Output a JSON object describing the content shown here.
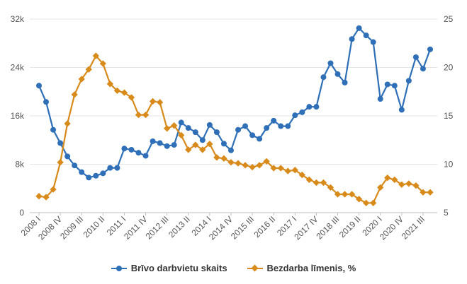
{
  "chart_data": {
    "type": "line",
    "title": "",
    "xlabel": "",
    "ylabel_left": "",
    "ylabel_right": "",
    "ylim_left": [
      0,
      32000
    ],
    "ylim_right": [
      5,
      25
    ],
    "yticks_left": [
      {
        "value": 0,
        "label": "0"
      },
      {
        "value": 8000,
        "label": "8k"
      },
      {
        "value": 16000,
        "label": "16k"
      },
      {
        "value": 24000,
        "label": "24k"
      },
      {
        "value": 32000,
        "label": "32k"
      }
    ],
    "yticks_right": [
      {
        "value": 5,
        "label": "5"
      },
      {
        "value": 10,
        "label": "10"
      },
      {
        "value": 15,
        "label": "15"
      },
      {
        "value": 20,
        "label": "20"
      },
      {
        "value": 25,
        "label": "25"
      }
    ],
    "xtick_labels": [
      "2008 I",
      "2008 IV",
      "2009 III",
      "2010 II",
      "2011 I",
      "2011 IV",
      "2012 III",
      "2013 II",
      "2014 I",
      "2014 IV",
      "2015 III",
      "2016 II",
      "2017 I",
      "2017 IV",
      "2018 III",
      "2019 II",
      "2020 I",
      "2020 IV",
      "2021 III"
    ],
    "colors": {
      "series1": "#2e6fb7",
      "series2": "#d88a1a"
    },
    "series": [
      {
        "name": "Brīvo darbvietu skaits",
        "axis": "left",
        "marker": "circle",
        "values": [
          21000,
          18300,
          13700,
          11500,
          9300,
          7800,
          6700,
          5800,
          6100,
          6500,
          7400,
          7400,
          10600,
          10400,
          9900,
          9400,
          11800,
          11500,
          11000,
          11200,
          14900,
          14000,
          13300,
          12000,
          14500,
          13300,
          11400,
          10300,
          13700,
          14300,
          12800,
          12200,
          14000,
          15200,
          14300,
          14300,
          16100,
          16600,
          17500,
          17500,
          22400,
          24700,
          22900,
          21500,
          28700,
          30500,
          29300,
          28200,
          18800,
          21200,
          21000,
          17000,
          21800,
          25700,
          23800,
          27000
        ]
      },
      {
        "name": "Bezdarba līmenis, %",
        "axis": "right",
        "marker": "diamond",
        "values": [
          6.7,
          6.6,
          7.4,
          10.2,
          14.2,
          17.2,
          18.8,
          19.8,
          21.2,
          20.4,
          18.3,
          17.6,
          17.4,
          16.9,
          15.1,
          15.1,
          16.5,
          16.4,
          13.7,
          14.0,
          13.0,
          11.5,
          12.0,
          11.5,
          12.1,
          10.7,
          10.6,
          10.2,
          10.1,
          9.9,
          9.7,
          9.9,
          10.3,
          9.6,
          9.6,
          9.3,
          9.4,
          8.9,
          8.4,
          8.1,
          8.1,
          7.6,
          6.9,
          6.9,
          6.9,
          6.4,
          6.0,
          6.0,
          7.6,
          8.6,
          8.4,
          7.9,
          8.0,
          7.8,
          7.1,
          7.1
        ]
      }
    ]
  }
}
